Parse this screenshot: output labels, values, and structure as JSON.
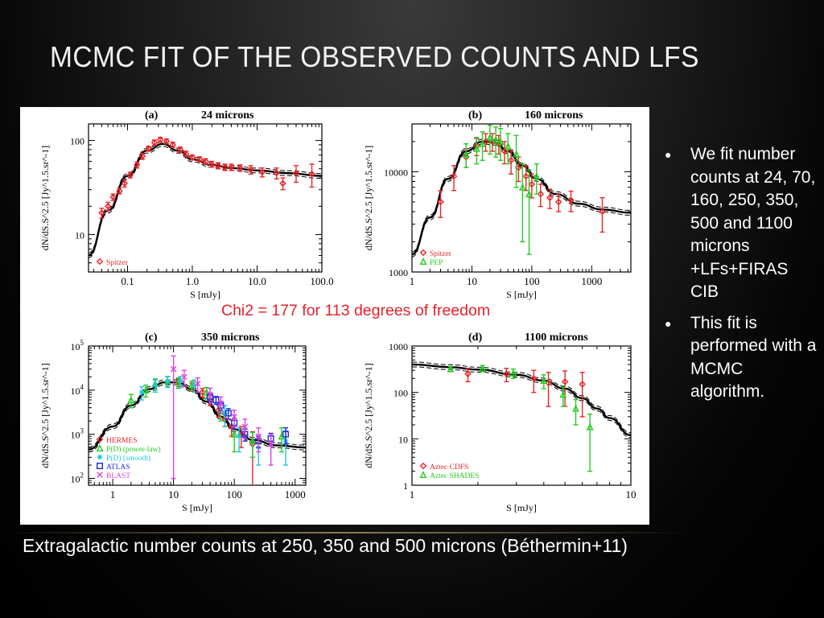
{
  "slide": {
    "title": "MCMC FIT OF THE OBSERVED COUNTS AND LFS",
    "caption": "Extragalactic number counts at 250, 350 and 500 microns (Béthermin+11)",
    "bullets": [
      "We fit number counts at 24, 70, 160, 250, 350, 500 and 1100 microns +LFs+FIRAS CIB",
      "This fit is performed with a MCMC algorithm."
    ],
    "overlay_note": "Chi2 = 177 for 113 degrees of freedom"
  },
  "chart_data": [
    {
      "type": "scatter",
      "panel_label": "(a)",
      "title": "24 microns",
      "xlabel": "S [mJy]",
      "ylabel": "dN/dS.S^2.5 [Jy^1.5.sr^-1]",
      "xscale": "log",
      "yscale": "log",
      "xlim": [
        0.025,
        100
      ],
      "ylim": [
        4,
        150
      ],
      "xticks": [
        0.1,
        1.0,
        10.0,
        100.0
      ],
      "xticklabels": [
        "0.1",
        "1.0",
        "10.0",
        "100.0"
      ],
      "yticks": [
        10,
        100
      ],
      "yticklabels": [
        "10",
        "100"
      ],
      "legend": {
        "placement": "bottom-left",
        "entries": [
          {
            "label": "Spitzer",
            "color": "#e8262a",
            "marker": "diamond"
          }
        ]
      },
      "series": [
        {
          "name": "Spitzer",
          "color": "#e8262a",
          "marker": "diamond",
          "x": [
            0.04,
            0.05,
            0.06,
            0.075,
            0.09,
            0.11,
            0.14,
            0.17,
            0.21,
            0.26,
            0.32,
            0.4,
            0.5,
            0.65,
            0.8,
            1.0,
            1.3,
            1.6,
            2.0,
            2.5,
            3.2,
            4.0,
            5.5,
            8.0,
            12,
            20,
            25,
            40,
            70
          ],
          "y": [
            17,
            20,
            25,
            29,
            35,
            43,
            55,
            68,
            82,
            95,
            102,
            98,
            90,
            80,
            72,
            66,
            63,
            60,
            56,
            54,
            52,
            52,
            51,
            49,
            46,
            45,
            35,
            45,
            44
          ],
          "err": [
            2,
            2,
            2,
            2,
            3,
            3,
            4,
            5,
            5,
            6,
            6,
            6,
            6,
            5,
            5,
            4,
            4,
            4,
            4,
            4,
            4,
            4,
            4,
            5,
            5,
            6,
            5,
            9,
            12
          ]
        }
      ],
      "model": {
        "x": [
          0.025,
          0.05,
          0.1,
          0.2,
          0.35,
          0.6,
          1.0,
          2.0,
          4.0,
          10,
          30,
          100
        ],
        "y": [
          6,
          18,
          42,
          78,
          92,
          78,
          63,
          55,
          51,
          48,
          45,
          42
        ]
      }
    },
    {
      "type": "scatter",
      "panel_label": "(b)",
      "title": "160 microns",
      "xlabel": "S [mJy]",
      "ylabel": "dN/dS.S^2.5 [Jy^1.5.sr^-1]",
      "xscale": "log",
      "yscale": "log",
      "xlim": [
        1,
        4500
      ],
      "ylim": [
        1000,
        30000
      ],
      "xticks": [
        1,
        10,
        100,
        1000
      ],
      "xticklabels": [
        "1",
        "10",
        "100",
        "1000"
      ],
      "yticks": [
        1000,
        10000
      ],
      "yticklabels": [
        "1000",
        "10000"
      ],
      "legend": {
        "placement": "bottom-left",
        "entries": [
          {
            "label": "Spitzer",
            "color": "#e8262a",
            "marker": "diamond"
          },
          {
            "label": "PEP",
            "color": "#22cc22",
            "marker": "triangle"
          }
        ]
      },
      "series": [
        {
          "name": "Spitzer",
          "color": "#e8262a",
          "marker": "diamond",
          "x": [
            3,
            5,
            8,
            12,
            17,
            22,
            28,
            35,
            45,
            60,
            80,
            100,
            140,
            200,
            280,
            450,
            1500
          ],
          "y": [
            5000,
            9000,
            14000,
            18000,
            20000,
            20000,
            19000,
            16000,
            13000,
            11000,
            9000,
            7500,
            6000,
            5500,
            5000,
            5200,
            4000
          ],
          "err": [
            1500,
            2500,
            3000,
            3500,
            4000,
            4000,
            4000,
            4000,
            3500,
            3000,
            2500,
            2000,
            1500,
            1200,
            1000,
            1200,
            1500
          ]
        },
        {
          "name": "PEP",
          "color": "#22cc22",
          "marker": "triangle",
          "x": [
            8,
            12,
            15,
            20,
            25,
            30,
            40,
            55,
            70,
            90,
            120
          ],
          "y": [
            15000,
            17000,
            19000,
            22000,
            21000,
            20000,
            18000,
            15000,
            7000,
            6000,
            9000
          ],
          "err": [
            4000,
            5000,
            6000,
            7000,
            7000,
            7000,
            6000,
            8000,
            5000,
            4500,
            3000
          ]
        }
      ],
      "model": {
        "x": [
          1,
          2,
          4,
          8,
          15,
          25,
          40,
          70,
          120,
          250,
          600,
          1500,
          4500
        ],
        "y": [
          1500,
          3500,
          8500,
          16000,
          20000,
          19500,
          16000,
          11500,
          8500,
          6000,
          4800,
          4200,
          3900
        ]
      }
    },
    {
      "type": "scatter",
      "panel_label": "(c)",
      "title": "350 microns",
      "xlabel": "S [mJy]",
      "ylabel": "dN/dS.S^2.5 [Jy^1.5.sr^-1]",
      "xscale": "log",
      "yscale": "log",
      "xlim": [
        0.4,
        1500
      ],
      "ylim": [
        70,
        100000
      ],
      "xticks": [
        1,
        10,
        100,
        1000
      ],
      "xticklabels": [
        "1",
        "10",
        "100",
        "1000"
      ],
      "yticks": [
        100,
        1000,
        10000,
        100000
      ],
      "yticklabels": [
        "10^2",
        "10^3",
        "10^4",
        "10^5"
      ],
      "legend": {
        "placement": "bottom-left",
        "entries": [
          {
            "label": "HERMES",
            "color": "#e8262a",
            "marker": "diamond"
          },
          {
            "label": "P(D) (power-law)",
            "color": "#22cc22",
            "marker": "triangle"
          },
          {
            "label": "P(D) (smooth)",
            "color": "#22c8e0",
            "marker": "star"
          },
          {
            "label": "ATLAS",
            "color": "#1f2bd8",
            "marker": "square"
          },
          {
            "label": "BLAST",
            "color": "#e040e0",
            "marker": "cross"
          }
        ]
      },
      "series": [
        {
          "name": "HERMES",
          "color": "#e8262a",
          "marker": "diamond",
          "x": [
            12,
            20,
            30,
            40,
            55,
            70,
            90,
            130,
            200
          ],
          "y": [
            15000,
            12000,
            9000,
            6000,
            3500,
            2200,
            1500,
            1000,
            600
          ],
          "err": [
            3000,
            2500,
            2000,
            1500,
            1000,
            700,
            600,
            500,
            540
          ]
        },
        {
          "name": "P(D) (power-law)",
          "color": "#22cc22",
          "marker": "triangle",
          "x": [
            2,
            3.5,
            5,
            8,
            12,
            20,
            35,
            60,
            100,
            200,
            600
          ],
          "y": [
            6000,
            10000,
            14000,
            16000,
            15000,
            13000,
            9000,
            3500,
            1000,
            700,
            900
          ],
          "err": [
            2000,
            3000,
            4000,
            4000,
            4000,
            3000,
            2500,
            1500,
            600,
            400,
            500
          ]
        },
        {
          "name": "P(D) (smooth)",
          "color": "#22c8e0",
          "marker": "star",
          "x": [
            3,
            5,
            8,
            13,
            22,
            40,
            70,
            120,
            250,
            700
          ],
          "y": [
            9000,
            13000,
            16000,
            16000,
            13000,
            8000,
            3000,
            900,
            500,
            700
          ],
          "err": [
            3000,
            4000,
            4500,
            4500,
            4000,
            3000,
            1500,
            500,
            300,
            500
          ]
        },
        {
          "name": "ATLAS",
          "color": "#1f2bd8",
          "marker": "square",
          "x": [
            40,
            50,
            60,
            80,
            100,
            150,
            250,
            400,
            700
          ],
          "y": [
            7000,
            6000,
            4500,
            3000,
            1800,
            1000,
            700,
            800,
            1000
          ],
          "err": [
            1500,
            1200,
            1000,
            800,
            500,
            300,
            200,
            250,
            400
          ]
        },
        {
          "name": "BLAST",
          "color": "#e040e0",
          "marker": "cross",
          "x": [
            10,
            15,
            25,
            40,
            60,
            100,
            150,
            250,
            400
          ],
          "y": [
            30000,
            20000,
            14000,
            8000,
            5000,
            2500,
            1500,
            900,
            600
          ],
          "err": [
            29900,
            8000,
            5000,
            3000,
            2000,
            1000,
            700,
            500,
            400
          ]
        }
      ],
      "model": {
        "x": [
          0.4,
          1,
          2,
          4,
          7,
          12,
          20,
          35,
          60,
          100,
          200,
          500,
          1500
        ],
        "y": [
          450,
          1500,
          4500,
          10500,
          15000,
          15000,
          10500,
          5500,
          2500,
          1300,
          750,
          560,
          500
        ]
      }
    },
    {
      "type": "scatter",
      "panel_label": "(d)",
      "title": "1100 microns",
      "xlabel": "S [mJy]",
      "ylabel": "dN/dS.S^2.5 [Jy^1.5.sr^-1]",
      "xscale": "log",
      "yscale": "log",
      "xlim": [
        1,
        10
      ],
      "ylim": [
        1,
        1000
      ],
      "xticks": [
        1,
        10
      ],
      "xticklabels": [
        "1",
        "10"
      ],
      "yticks": [
        1,
        10,
        100,
        1000
      ],
      "yticklabels": [
        "1",
        "10",
        "100",
        "1000"
      ],
      "legend": {
        "placement": "bottom-left",
        "entries": [
          {
            "label": "Aztec CDFS",
            "color": "#e8262a",
            "marker": "diamond"
          },
          {
            "label": "Aztec SHADES",
            "color": "#22cc22",
            "marker": "triangle"
          }
        ]
      },
      "series": [
        {
          "name": "Aztec CDFS",
          "color": "#e8262a",
          "marker": "diamond",
          "x": [
            1.8,
            2.7,
            3.6,
            4.2,
            5.0,
            6.0
          ],
          "y": [
            250,
            250,
            200,
            160,
            170,
            150
          ],
          "err": [
            80,
            80,
            100,
            110,
            120,
            120
          ]
        },
        {
          "name": "Aztec SHADES",
          "color": "#22cc22",
          "marker": "triangle",
          "x": [
            1.5,
            2.1,
            2.9,
            4.0,
            4.9,
            5.6,
            6.5
          ],
          "y": [
            320,
            330,
            260,
            180,
            90,
            45,
            18
          ],
          "err": [
            40,
            50,
            60,
            60,
            40,
            25,
            16
          ]
        }
      ],
      "model": {
        "x": [
          1,
          1.5,
          2,
          3,
          4,
          5,
          6,
          7,
          8,
          10
        ],
        "y": [
          400,
          350,
          310,
          240,
          180,
          120,
          75,
          45,
          28,
          12
        ]
      }
    }
  ]
}
